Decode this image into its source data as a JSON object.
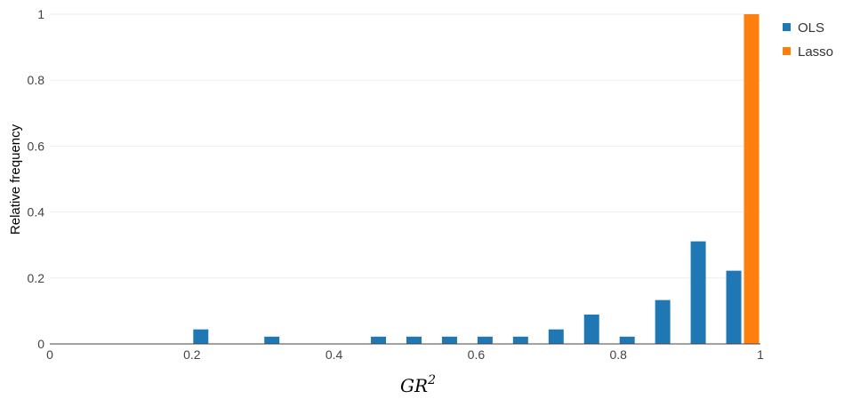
{
  "chart_data": {
    "type": "bar",
    "xlabel": "GR",
    "xlabel_superscript": "2",
    "ylabel": "Relative frequency",
    "xlim": [
      0,
      1
    ],
    "ylim": [
      0,
      1
    ],
    "grid": true,
    "legend_position": "top-right",
    "x_ticks": [
      {
        "value": 0,
        "label": "0"
      },
      {
        "value": 0.2,
        "label": "0.2"
      },
      {
        "value": 0.4,
        "label": "0.4"
      },
      {
        "value": 0.6,
        "label": "0.6"
      },
      {
        "value": 0.8,
        "label": "0.8"
      },
      {
        "value": 1,
        "label": "1"
      }
    ],
    "y_ticks": [
      {
        "value": 0,
        "label": "0"
      },
      {
        "value": 0.2,
        "label": "0.2"
      },
      {
        "value": 0.4,
        "label": "0.4"
      },
      {
        "value": 0.6,
        "label": "0.6"
      },
      {
        "value": 0.8,
        "label": "0.8"
      },
      {
        "value": 1,
        "label": "1"
      }
    ],
    "bin_width": 0.05,
    "bins": [
      0.2,
      0.3,
      0.45,
      0.5,
      0.55,
      0.6,
      0.65,
      0.7,
      0.75,
      0.8,
      0.85,
      0.9,
      0.95
    ],
    "series": [
      {
        "name": "OLS",
        "color": "#1f77b4",
        "values": [
          0.044,
          0.022,
          0.022,
          0.022,
          0.022,
          0.022,
          0.022,
          0.044,
          0.089,
          0.022,
          0.133,
          0.311,
          0.222
        ]
      },
      {
        "name": "Lasso",
        "color": "#ff7f0e",
        "values": [
          0,
          0,
          0,
          0,
          0,
          0,
          0,
          0,
          0,
          0,
          0,
          0,
          1
        ]
      }
    ]
  }
}
